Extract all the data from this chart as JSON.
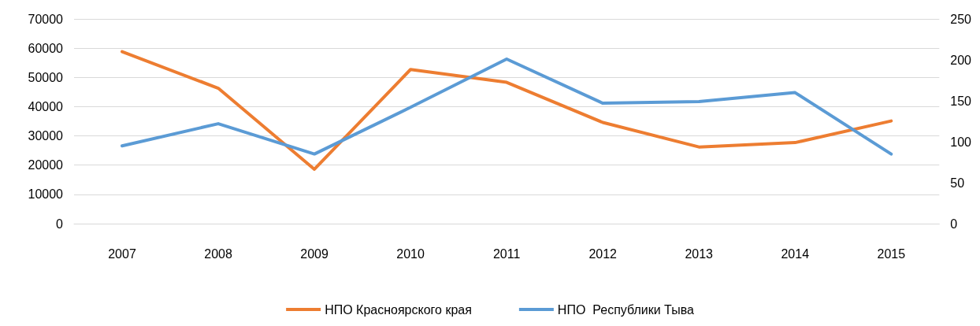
{
  "chart_data": {
    "type": "line",
    "categories": [
      "2007",
      "2008",
      "2009",
      "2010",
      "2011",
      "2012",
      "2013",
      "2014",
      "2015"
    ],
    "series": [
      {
        "name": "НПО Красноярского края",
        "color": "#ed7d31",
        "values": [
          58800,
          46300,
          18600,
          52700,
          48300,
          34600,
          26200,
          27700,
          35100
        ]
      },
      {
        "name": "НПО  Республики Тыва",
        "color": "#5b9bd5",
        "axis": "y2",
        "values": [
          95,
          122,
          85,
          142,
          201,
          147,
          149,
          160,
          85
        ]
      }
    ],
    "ylim": [
      0,
      70000
    ],
    "yticks": [
      0,
      10000,
      20000,
      30000,
      40000,
      50000,
      60000,
      70000
    ],
    "y2lim": [
      0,
      250
    ],
    "y2ticks": [
      0,
      50,
      100,
      150,
      200,
      250
    ],
    "grid": "y",
    "legend": "bottom",
    "marker": "none",
    "line_style": "solid"
  }
}
